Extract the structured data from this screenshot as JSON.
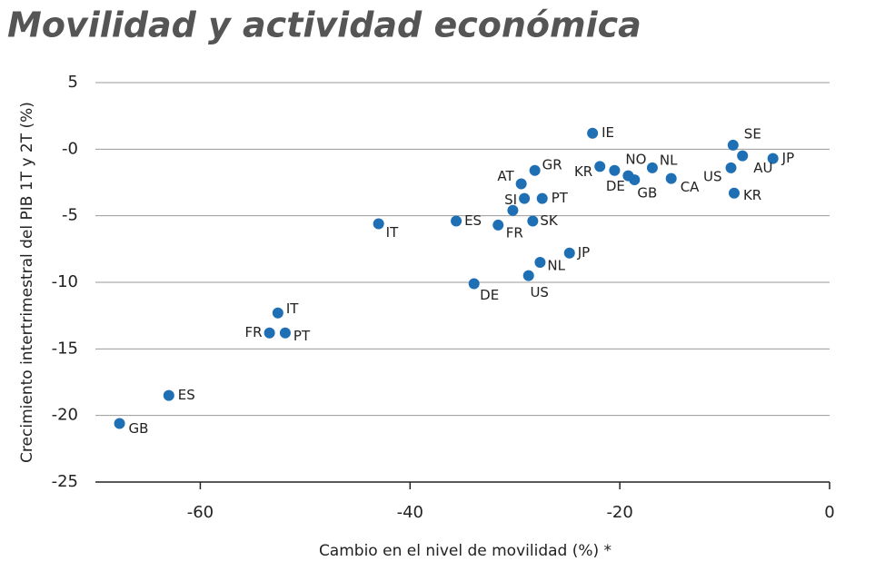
{
  "chart_data": {
    "type": "scatter",
    "title": "Movilidad y actividad económica",
    "x_label": "Cambio en el nivel de movilidad (%) *",
    "y_label": "Crecimiento intertrimestral del PIB 1T y 2T (%)",
    "color": "#1f6fb5",
    "x": [
      -22.6,
      -9.2,
      -5.4,
      -8.3,
      -9.4,
      -9.1,
      -28.1,
      -21.9,
      -20.5,
      -16.9,
      -19.2,
      -18.6,
      -15.1,
      -29.4,
      -29.1,
      -27.4,
      -30.2,
      -28.3,
      -31.6,
      -35.6,
      -43.0,
      -24.8,
      -27.6,
      -28.7,
      -33.9,
      -52.6,
      -53.4,
      -51.9,
      -63.0,
      -67.7
    ],
    "values": [
      1.2,
      0.3,
      -0.7,
      -0.5,
      -1.4,
      -3.3,
      -1.6,
      -1.3,
      -1.6,
      -1.4,
      -2.0,
      -2.3,
      -2.2,
      -2.6,
      -3.7,
      -3.7,
      -4.6,
      -5.4,
      -5.7,
      -5.4,
      -5.6,
      -7.8,
      -8.5,
      -9.5,
      -10.1,
      -12.3,
      -13.8,
      -13.8,
      -18.5,
      -20.6
    ],
    "point_labels": [
      "IE",
      "SE",
      "JP",
      "AU",
      "US",
      "KR",
      "GR",
      "KR",
      "NO",
      "NL",
      "DE",
      "GB",
      "CA",
      "AT",
      "SI",
      "PT",
      null,
      "SK",
      "FR",
      "ES",
      "IT",
      "JP",
      "NL",
      "US",
      "DE",
      "IT",
      "FR",
      "PT",
      "ES",
      "GB"
    ],
    "xlim": [
      -70,
      0
    ],
    "xticks": [
      -60,
      -40,
      -20,
      0
    ],
    "ylim": [
      -25,
      5
    ],
    "yticks": [
      5,
      {
        "value": 0,
        "label": "-0"
      },
      -5,
      -10,
      -15,
      -20,
      -25
    ],
    "grid": true
  }
}
